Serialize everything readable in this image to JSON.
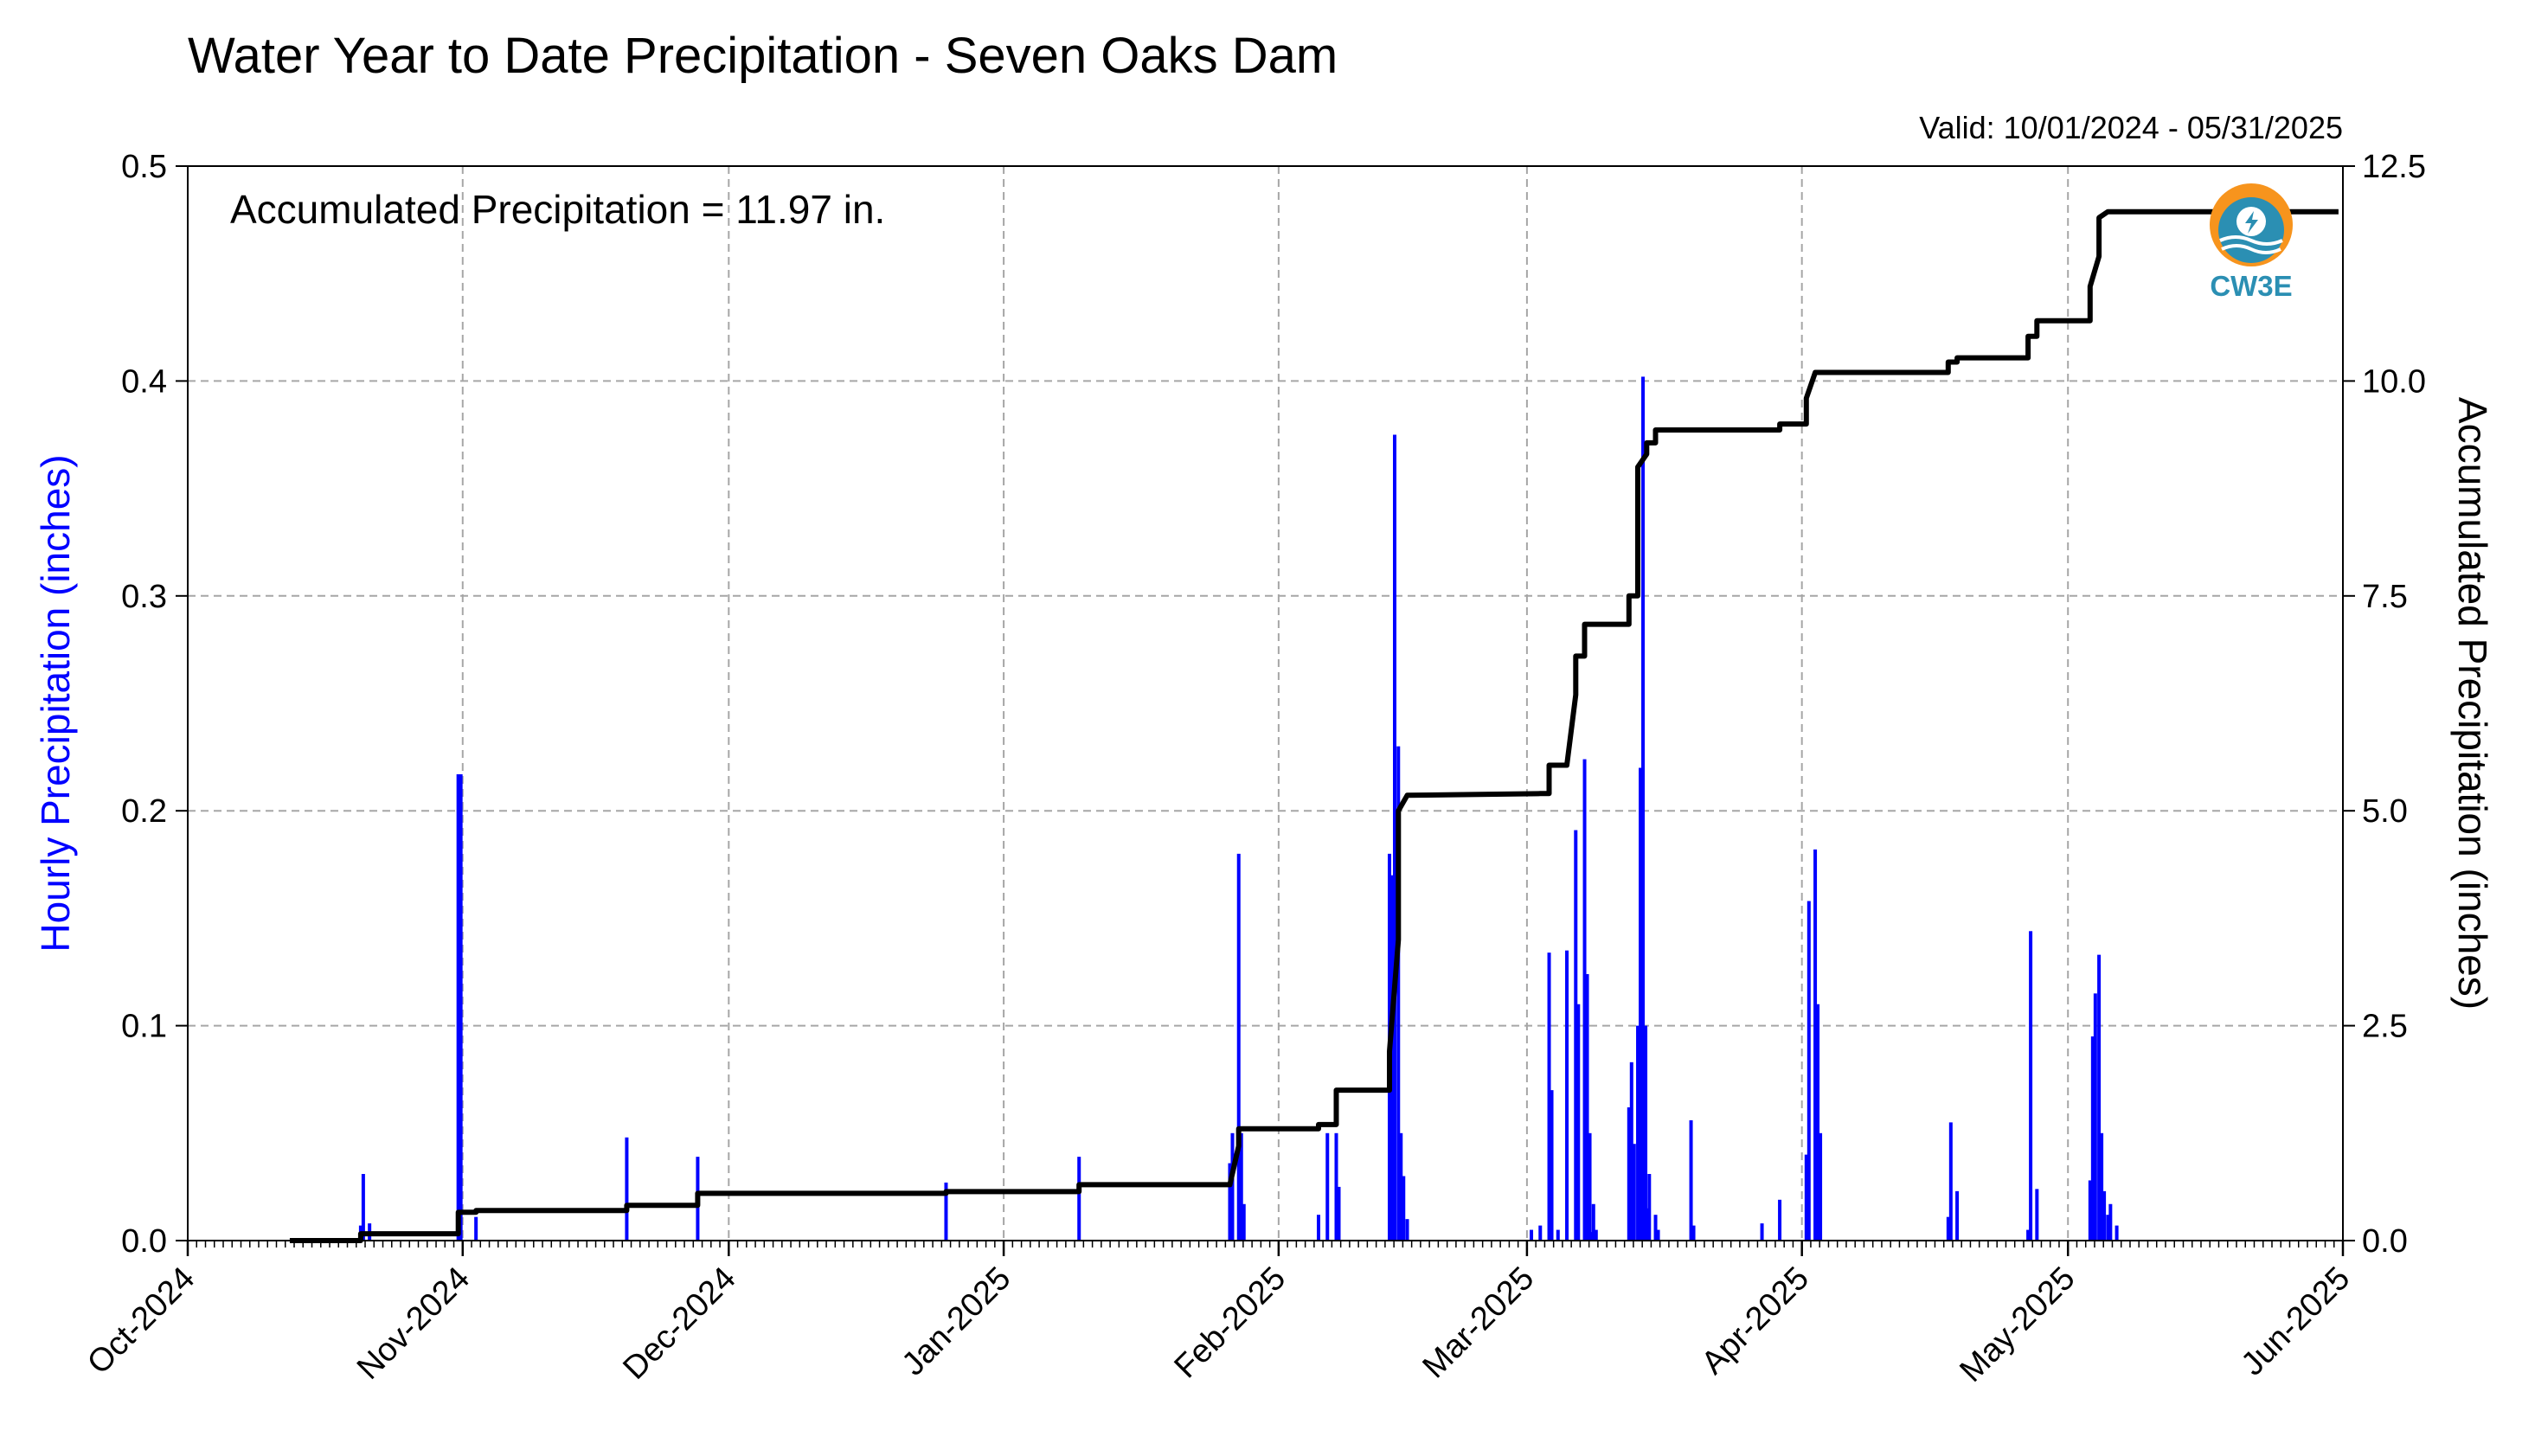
{
  "chart_data": {
    "type": "bar",
    "title": "Water Year to Date Precipitation - Seven Oaks Dam",
    "subtitle": "Valid: 10/01/2024 - 05/31/2025",
    "annotation": "Accumulated Precipitation = 11.97 in.",
    "ylabel": "Hourly Precipitation (inches)",
    "ylabel_right": "Accumulated Precipitation (inches)",
    "ylim": [
      0,
      0.5
    ],
    "ylim_right": [
      0,
      12.5
    ],
    "yticks": [
      "0.0",
      "0.1",
      "0.2",
      "0.3",
      "0.4",
      "0.5"
    ],
    "yticks_right": [
      "0.0",
      "2.5",
      "5.0",
      "7.5",
      "10.0",
      "12.5"
    ],
    "xlim": [
      "2024-10-01",
      "2025-06-01"
    ],
    "xticks": [
      "Oct-2024",
      "Nov-2024",
      "Dec-2024",
      "Jan-2025",
      "Feb-2025",
      "Mar-2025",
      "Apr-2025",
      "May-2025",
      "Jun-2025"
    ],
    "grid": true,
    "logo": {
      "text": "CW3E",
      "colors": [
        "#f7941d",
        "#2b8fb3"
      ]
    },
    "series": [
      {
        "name": "Hourly Precipitation",
        "type": "bar",
        "axis": "left",
        "color": "#0000ff",
        "x": [
          "2024-10-20",
          "2024-10-20",
          "2024-10-21",
          "2024-10-31",
          "2024-10-31",
          "2024-11-02",
          "2024-11-19",
          "2024-11-27",
          "2024-12-25",
          "2025-01-09",
          "2025-01-26",
          "2025-01-26",
          "2025-01-27",
          "2025-01-27",
          "2025-01-27",
          "2025-02-05",
          "2025-02-06",
          "2025-02-07",
          "2025-02-07",
          "2025-02-13",
          "2025-02-13",
          "2025-02-13",
          "2025-02-14",
          "2025-02-14",
          "2025-02-14",
          "2025-02-15",
          "2025-03-01",
          "2025-03-02",
          "2025-03-03",
          "2025-03-03",
          "2025-03-04",
          "2025-03-05",
          "2025-03-06",
          "2025-03-06",
          "2025-03-07",
          "2025-03-07",
          "2025-03-07",
          "2025-03-07",
          "2025-03-08",
          "2025-03-08",
          "2025-03-12",
          "2025-03-12",
          "2025-03-12",
          "2025-03-13",
          "2025-03-13",
          "2025-03-13",
          "2025-03-13",
          "2025-03-14",
          "2025-03-14",
          "2025-03-15",
          "2025-03-15",
          "2025-03-19",
          "2025-03-19",
          "2025-03-27",
          "2025-03-29",
          "2025-04-01",
          "2025-04-01",
          "2025-04-02",
          "2025-04-02",
          "2025-04-02",
          "2025-04-17",
          "2025-04-17",
          "2025-04-18",
          "2025-04-26",
          "2025-04-26",
          "2025-04-27",
          "2025-05-03",
          "2025-05-03",
          "2025-05-03",
          "2025-05-04",
          "2025-05-04",
          "2025-05-04",
          "2025-05-05",
          "2025-05-05",
          "2025-05-06"
        ],
        "values": [
          0.007,
          0.031,
          0.008,
          0.217,
          0.217,
          0.011,
          0.048,
          0.039,
          0.027,
          0.039,
          0.036,
          0.05,
          0.18,
          0.05,
          0.017,
          0.012,
          0.05,
          0.05,
          0.025,
          0.18,
          0.17,
          0.375,
          0.23,
          0.05,
          0.03,
          0.01,
          0.005,
          0.007,
          0.134,
          0.07,
          0.005,
          0.135,
          0.191,
          0.11,
          0.224,
          0.124,
          0.05,
          0.004,
          0.017,
          0.005,
          0.062,
          0.083,
          0.045,
          0.1,
          0.22,
          0.402,
          0.1,
          0.015,
          0.031,
          0.012,
          0.005,
          0.056,
          0.007,
          0.008,
          0.019,
          0.04,
          0.158,
          0.182,
          0.11,
          0.05,
          0.011,
          0.055,
          0.023,
          0.005,
          0.144,
          0.024,
          0.028,
          0.095,
          0.115,
          0.133,
          0.05,
          0.023,
          0.012,
          0.017,
          0.007
        ]
      },
      {
        "name": "Accumulated Precipitation",
        "type": "step",
        "axis": "right",
        "color": "#000000",
        "x": [
          "2024-10-12",
          "2024-10-20",
          "2024-10-20",
          "2024-10-31",
          "2024-10-31",
          "2024-11-02",
          "2024-11-02",
          "2024-11-19",
          "2024-11-19",
          "2024-11-27",
          "2024-11-27",
          "2024-12-25",
          "2024-12-25",
          "2025-01-09",
          "2025-01-09",
          "2025-01-26",
          "2025-01-27",
          "2025-01-27",
          "2025-02-05",
          "2025-02-05",
          "2025-02-07",
          "2025-02-07",
          "2025-02-13",
          "2025-02-13",
          "2025-02-14",
          "2025-02-14",
          "2025-02-15",
          "2025-02-15",
          "2025-03-02",
          "2025-03-03",
          "2025-03-03",
          "2025-03-05",
          "2025-03-06",
          "2025-03-06",
          "2025-03-07",
          "2025-03-07",
          "2025-03-08",
          "2025-03-08",
          "2025-03-12",
          "2025-03-12",
          "2025-03-13",
          "2025-03-13",
          "2025-03-14",
          "2025-03-14",
          "2025-03-15",
          "2025-03-15",
          "2025-03-19",
          "2025-03-19",
          "2025-03-27",
          "2025-03-27",
          "2025-03-29",
          "2025-03-29",
          "2025-04-01",
          "2025-04-01",
          "2025-04-02",
          "2025-04-02",
          "2025-04-17",
          "2025-04-17",
          "2025-04-18",
          "2025-04-18",
          "2025-04-26",
          "2025-04-26",
          "2025-04-27",
          "2025-04-27",
          "2025-05-03",
          "2025-05-03",
          "2025-05-04",
          "2025-05-04",
          "2025-05-05",
          "2025-05-05",
          "2025-05-06",
          "2025-05-06",
          "2025-05-31"
        ],
        "values": [
          0,
          0,
          0.08,
          0.08,
          0.33,
          0.33,
          0.35,
          0.35,
          0.41,
          0.41,
          0.55,
          0.55,
          0.57,
          0.57,
          0.65,
          0.65,
          1.1,
          1.3,
          1.3,
          1.35,
          1.35,
          1.75,
          1.75,
          2.2,
          3.5,
          5.0,
          5.18,
          5.18,
          5.2,
          5.2,
          5.53,
          5.53,
          6.35,
          6.8,
          6.8,
          7.17,
          7.17,
          7.17,
          7.17,
          7.5,
          7.5,
          9.0,
          9.15,
          9.28,
          9.28,
          9.43,
          9.43,
          9.43,
          9.43,
          9.43,
          9.43,
          9.5,
          9.5,
          9.8,
          10.1,
          10.1,
          10.1,
          10.22,
          10.22,
          10.27,
          10.27,
          10.52,
          10.52,
          10.7,
          10.7,
          11.1,
          11.45,
          11.9,
          11.97,
          11.97,
          11.97,
          11.97,
          11.97
        ]
      }
    ]
  }
}
